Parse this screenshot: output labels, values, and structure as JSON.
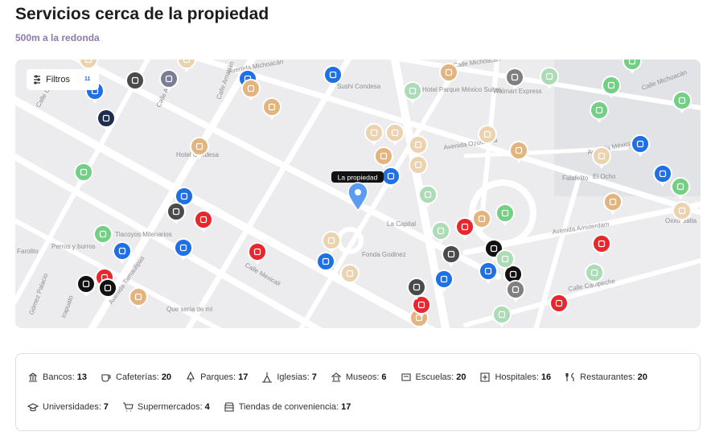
{
  "header": {
    "title": "Servicios cerca de la propiedad",
    "subtitle": "500m a la redonda"
  },
  "map": {
    "filter_button": "Filtros",
    "filter_count": 11,
    "property_label": "La propiedad",
    "labels": [
      "Avenida Michoacán",
      "Calle Michoacán",
      "Calle Michoacán",
      "Calle Cuautla",
      "Calle Atlixco",
      "Calle Amatlán",
      "Hotel Condesa",
      "Sushi Condesa",
      "Hotel Parque México Suites",
      "Walmart Express",
      "Avenida Ozuluama",
      "Avenida México",
      "Falafelito",
      "El Ocho",
      "La Capital",
      "Calle Mexicali",
      "Fonda Godinez",
      "Calle Campeche",
      "Tlacoyos Milenarios",
      "Perros y burros",
      "Farolito",
      "Gómez Palacio",
      "Irapuato",
      "Avenida Tamaulipas",
      "Que sería de mí",
      "Avenida Amsterdam",
      "Oxxo Salta"
    ]
  },
  "legend": {
    "items": [
      {
        "label": "Bancos:",
        "count": 13
      },
      {
        "label": "Cafeterías:",
        "count": 20
      },
      {
        "label": "Parques:",
        "count": 17
      },
      {
        "label": "Iglesias:",
        "count": 7
      },
      {
        "label": "Museos:",
        "count": 6
      },
      {
        "label": "Escuelas:",
        "count": 20
      },
      {
        "label": "Hospitales:",
        "count": 16
      },
      {
        "label": "Restaurantes:",
        "count": 20
      },
      {
        "label": "Universidades:",
        "count": 7
      },
      {
        "label": "Supermercados:",
        "count": 4
      },
      {
        "label": "Tiendas de conveniencia:",
        "count": 17
      }
    ]
  }
}
